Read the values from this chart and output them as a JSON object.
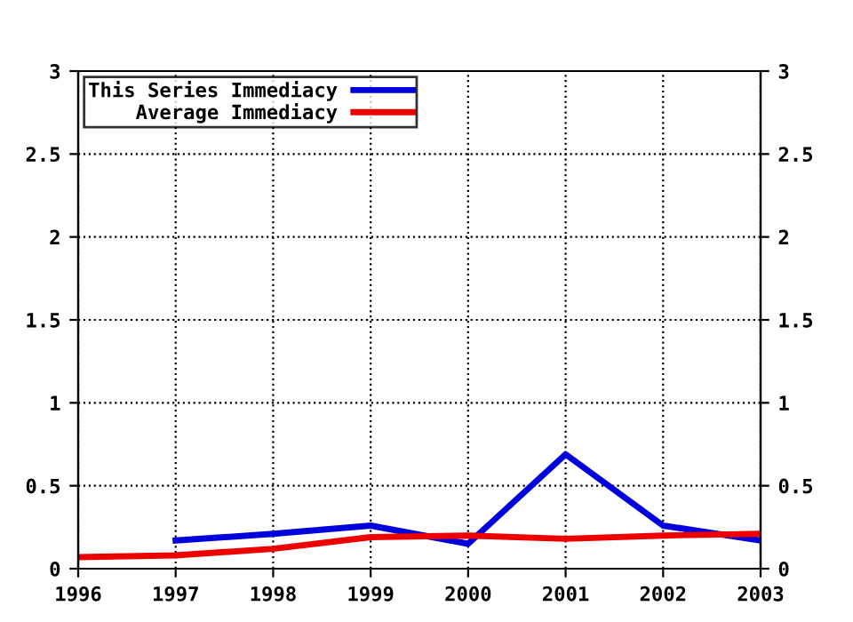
{
  "chart_data": {
    "type": "line",
    "x": [
      1996,
      1997,
      1998,
      1999,
      2000,
      2001,
      2002,
      2003
    ],
    "series": [
      {
        "name": "This Series Immediacy",
        "color": "#0000dd",
        "values": [
          null,
          0.17,
          0.21,
          0.26,
          0.15,
          0.69,
          0.26,
          0.17
        ]
      },
      {
        "name": "Average Immediacy",
        "color": "#ee0000",
        "values": [
          0.07,
          0.08,
          0.12,
          0.19,
          0.2,
          0.18,
          0.2,
          0.21
        ]
      }
    ],
    "xlim": [
      1996,
      2003
    ],
    "xticks": [
      1996,
      1997,
      1998,
      1999,
      2000,
      2001,
      2002,
      2003
    ],
    "ylim": [
      0,
      3
    ],
    "yticks": [
      0,
      0.5,
      1,
      1.5,
      2,
      2.5,
      3
    ],
    "y2lim": [
      0,
      3
    ],
    "y2ticks": [
      0,
      0.5,
      1,
      1.5,
      2,
      2.5,
      3
    ],
    "grid": true,
    "legend": "top left",
    "marker": "none",
    "line_style": "solid"
  }
}
